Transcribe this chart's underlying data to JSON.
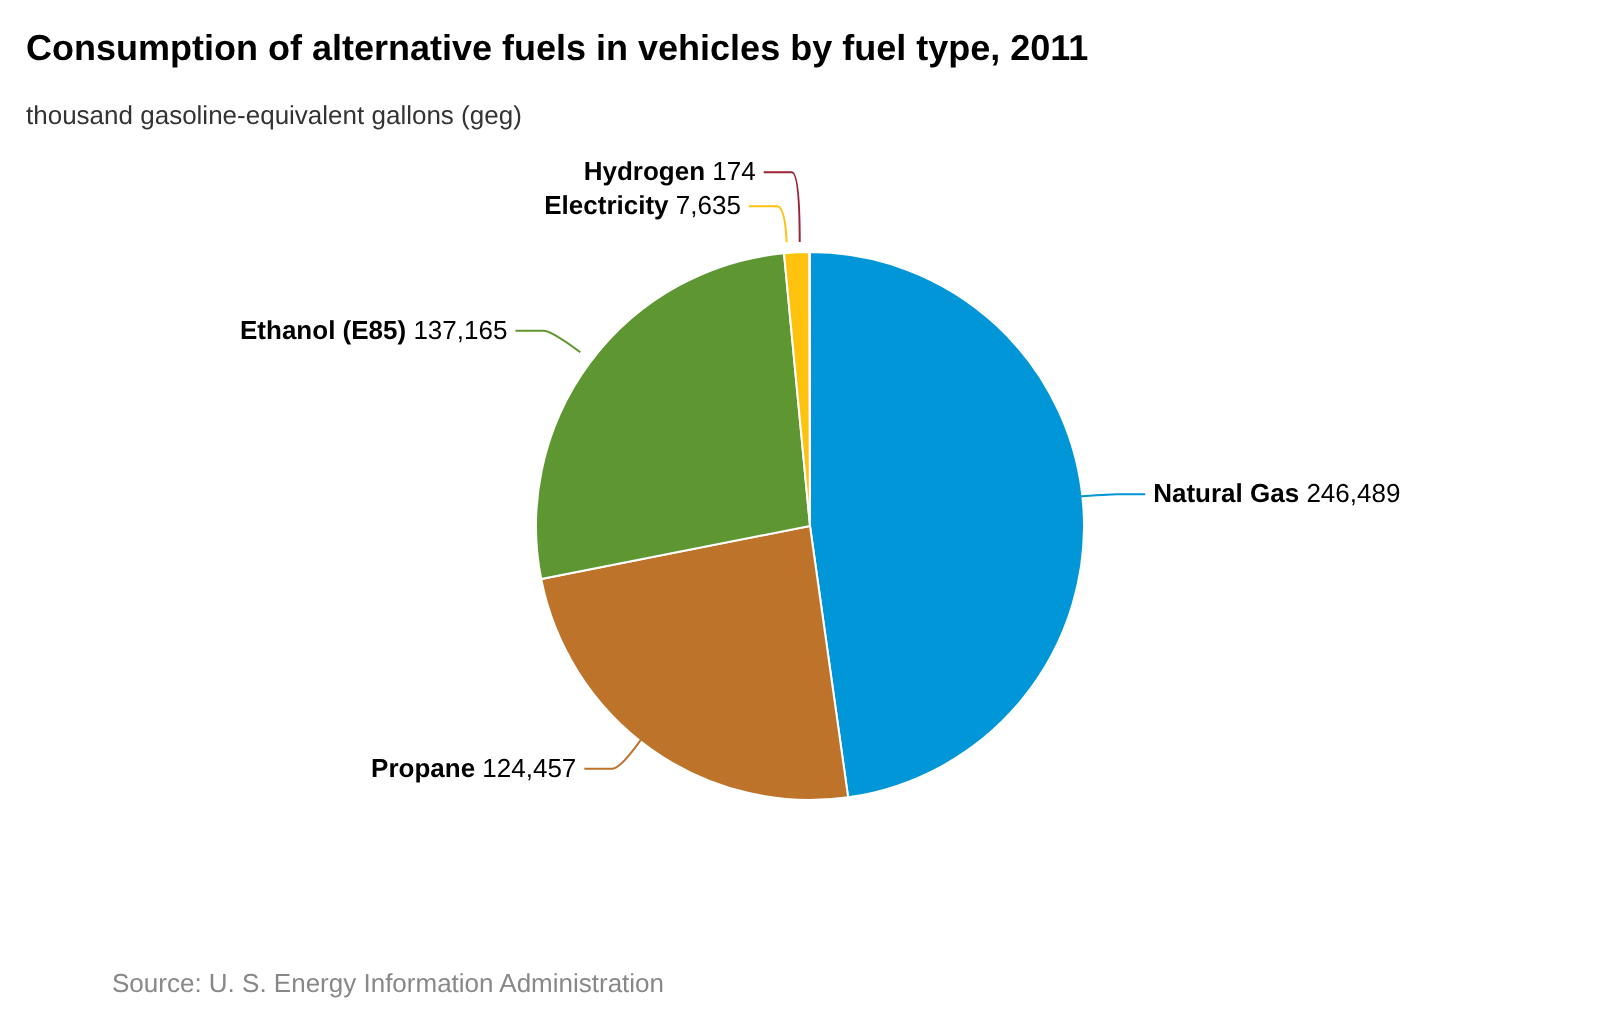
{
  "chart_data": {
    "type": "pie",
    "title": "Consumption of alternative fuels in vehicles by fuel type, 2011",
    "subtitle": "thousand gasoline-equivalent gallons (geg)",
    "categories": [
      "Natural Gas",
      "Propane",
      "Ethanol (E85)",
      "Electricity",
      "Hydrogen"
    ],
    "values": [
      246489,
      124457,
      137165,
      7635,
      174
    ],
    "colors": [
      "#0096d7",
      "#bd732a",
      "#5e9732",
      "#ffc20e",
      "#9b2335"
    ],
    "value_labels": [
      "246,489",
      "124,457",
      "137,165",
      "7,635",
      "174"
    ],
    "annotations": [
      "Source: U. S. Energy Information Administration"
    ]
  }
}
